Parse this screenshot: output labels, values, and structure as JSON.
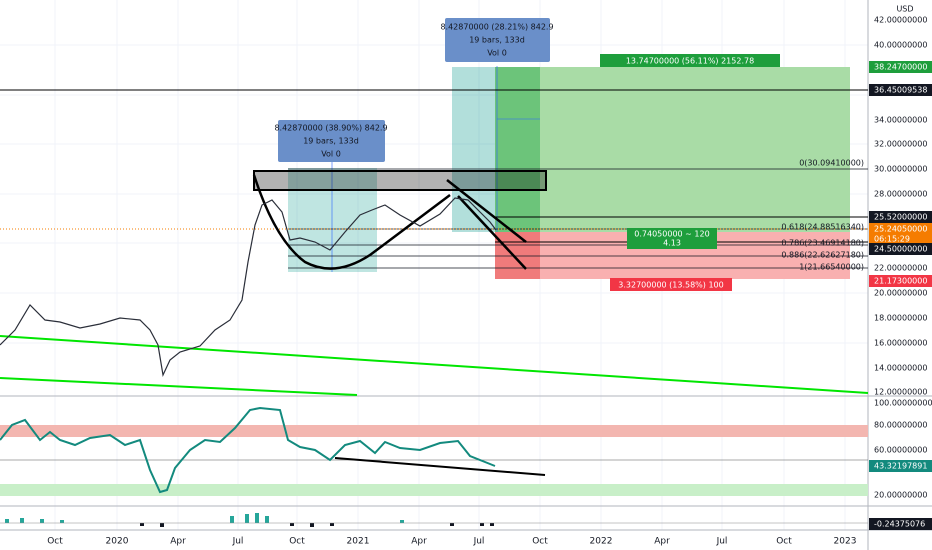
{
  "currency": "USD",
  "price_axis": [
    "42.00000000",
    "40.00000000",
    "34.00000000",
    "32.00000000",
    "30.00000000",
    "28.00000000",
    "22.00000000",
    "20.00000000",
    "18.00000000",
    "16.00000000",
    "14.00000000",
    "12.00000000"
  ],
  "price_tags": [
    {
      "text": "38.24700000",
      "color": "#1e9e3c"
    },
    {
      "text": "36.45009538",
      "color": "#131722"
    },
    {
      "text": "25.52000000",
      "color": "#131722"
    },
    {
      "text": "25.24050000",
      "sub": "06:15:29",
      "color": "#f57c00"
    },
    {
      "text": "24.50000000",
      "color": "#131722"
    },
    {
      "text": "21.17300000",
      "color": "#f23645"
    }
  ],
  "rsi_axis": [
    "100.00000000",
    "80.00000000",
    "60.00000000",
    "20.00000000"
  ],
  "rsi_tag": {
    "text": "43.32197891",
    "color": "#138a7e"
  },
  "macd_tag": {
    "text": "-0.24375076",
    "color": "#131722"
  },
  "time_axis": [
    "Oct",
    "2020",
    "Apr",
    "Jul",
    "Oct",
    "2021",
    "Apr",
    "Jul",
    "Oct",
    "2022",
    "Apr",
    "Jul",
    "Oct",
    "2023"
  ],
  "range_boxes": [
    {
      "line1": "8.42870000 (38.90%) 842.9",
      "line2": "19 bars, 133d",
      "line3": "Vol 0"
    },
    {
      "line1": "8.42870000 (28.21%) 842.9",
      "line2": "19 bars, 133d",
      "line3": "Vol 0"
    }
  ],
  "position": {
    "target": "13.74700000 (56.11%) 2152.78",
    "entry": "0.74050000 ~ 120",
    "ratio": "4.13",
    "stop": "3.32700000 (13.58%) 100"
  },
  "fib_labels": [
    "0(30.09410000)",
    "0.618(24.88516340)",
    "0.786(23.46914180)",
    "0.886(22.62627180)",
    "1(21.66540000)"
  ]
}
